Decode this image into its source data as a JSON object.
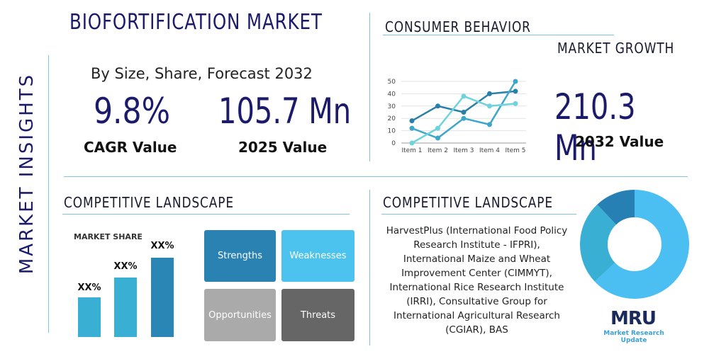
{
  "title": "BIOFORTIFICATION MARKET",
  "side_label": "MARKET INSIGHTS",
  "subtitle": "By Size, Share, Forecast 2032",
  "cagr": {
    "value": "9.8%",
    "label": "CAGR Value"
  },
  "value_2025": {
    "value": "105.7 Mn",
    "label": "2025 Value"
  },
  "consumer_heading": "CONSUMER BEHAVIOR",
  "growth_heading": "MARKET GROWTH",
  "value_2032": {
    "value": "210.3 Mn",
    "label": "2032 Value"
  },
  "competitive_left": "COMPETITIVE LANDSCAPE",
  "competitive_right": "COMPETITIVE LANDSCAPE",
  "market_share": {
    "title": "MARKET SHARE",
    "labels": [
      "XX%",
      "XX%",
      "XX%"
    ]
  },
  "swot": [
    "Strengths",
    "Weaknesses",
    "Opportunities",
    "Threats"
  ],
  "companies": "HarvestPlus (International Food Policy Research Institute - IFPRI), International Maize and Wheat Improvement Center (CIMMYT), International Rice Research Institute (IRRI), Consultative Group for International Agricultural Research (CGIAR), BAS",
  "logo": {
    "mark": "MRU",
    "name": "Market Research Update"
  },
  "chart_data": [
    {
      "type": "line",
      "categories": [
        "Item 1",
        "Item 2",
        "Item 3",
        "Item 4",
        "Item 5"
      ],
      "ylim": [
        0,
        50
      ],
      "yticks": [
        0,
        10,
        20,
        30,
        40,
        50
      ],
      "grid": true,
      "series": [
        {
          "values": [
            18,
            30,
            25,
            40,
            42
          ],
          "color": "#2a7fa8"
        },
        {
          "values": [
            12,
            4,
            20,
            15,
            50
          ],
          "color": "#3ea7c9"
        },
        {
          "values": [
            0,
            12,
            38,
            30,
            32
          ],
          "color": "#6fd3dc"
        }
      ]
    },
    {
      "type": "pie",
      "donut": true,
      "values": [
        63,
        25,
        12
      ],
      "colors": [
        "#4cbff2",
        "#3aafd4",
        "#2680b3"
      ]
    }
  ]
}
